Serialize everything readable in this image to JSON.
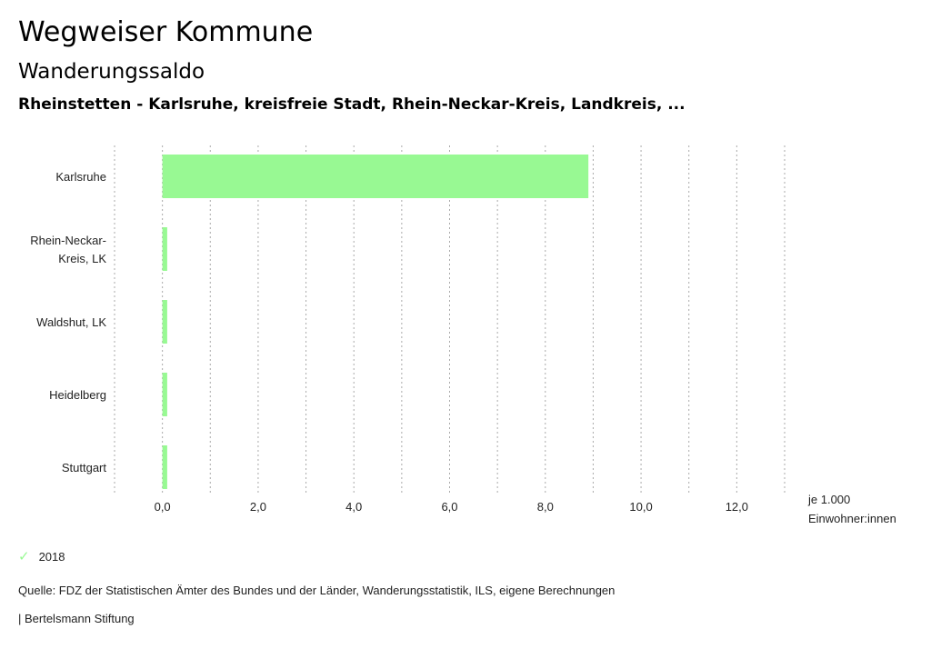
{
  "header": {
    "title": "Wegweiser Kommune",
    "subtitle": "Wanderungssaldo",
    "region": "Rheinstetten - Karlsruhe, kreisfreie Stadt, Rhein-Neckar-Kreis, Landkreis, ..."
  },
  "chart_data": {
    "type": "bar",
    "orientation": "horizontal",
    "categories": [
      [
        "Karlsruhe"
      ],
      [
        "Rhein-Neckar-",
        "Kreis, LK"
      ],
      [
        "Waldshut, LK"
      ],
      [
        "Heidelberg"
      ],
      [
        "Stuttgart"
      ]
    ],
    "series": [
      {
        "name": "2018",
        "values": [
          8.9,
          0.1,
          0.1,
          0.1,
          0.1
        ],
        "color": "#98f993"
      }
    ],
    "xlim": [
      -1,
      13
    ],
    "xticks": [
      0,
      2,
      4,
      6,
      8,
      10,
      12
    ],
    "xtick_labels": [
      "0,0",
      "2,0",
      "4,0",
      "6,0",
      "8,0",
      "10,0",
      "12,0"
    ],
    "xlabel": [
      "je 1.000",
      "Einwohner:innen"
    ],
    "grid": "vertical dotted, every 1.0",
    "legend": "bottom-left"
  },
  "legend": {
    "label": "2018",
    "icon": "check-icon"
  },
  "footer": {
    "source": "Quelle: FDZ der Statistischen Ämter des Bundes und der Länder, Wanderungsstatistik, ILS, eigene Berechnungen",
    "brand": "| Bertelsmann Stiftung"
  }
}
